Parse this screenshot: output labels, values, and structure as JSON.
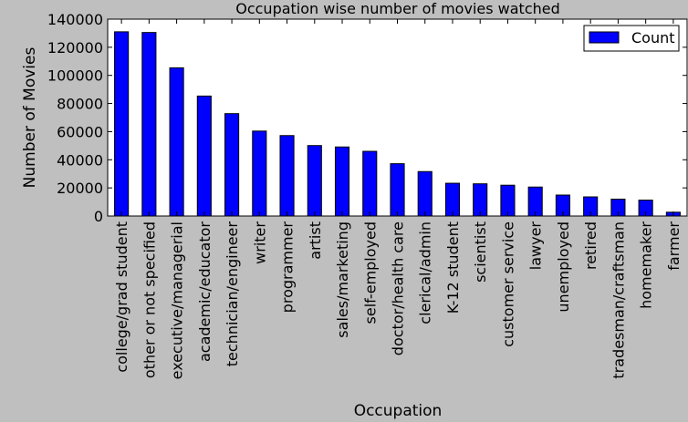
{
  "chart_data": {
    "type": "bar",
    "title": "Occupation wise number of movies watched",
    "xlabel": "Occupation",
    "ylabel": "Number of Movies",
    "ylim": [
      0,
      140000
    ],
    "yticks": [
      0,
      20000,
      40000,
      60000,
      80000,
      100000,
      120000,
      140000
    ],
    "grid": false,
    "legend_position": "top-right",
    "categories": [
      "college/grad student",
      "other or not specified",
      "executive/managerial",
      "academic/educator",
      "technician/engineer",
      "writer",
      "programmer",
      "artist",
      "sales/marketing",
      "self-employed",
      "doctor/health care",
      "clerical/admin",
      "K-12 student",
      "scientist",
      "customer service",
      "lawyer",
      "unemployed",
      "retired",
      "tradesman/craftsman",
      "homemaker",
      "farmer"
    ],
    "series": [
      {
        "name": "Count",
        "color": "#0000ff",
        "values": [
          131000,
          130500,
          105400,
          85300,
          72800,
          60400,
          57200,
          50100,
          49100,
          46000,
          37200,
          31600,
          23300,
          22900,
          21900,
          20600,
          14900,
          13600,
          12000,
          11300,
          2700
        ]
      }
    ]
  }
}
